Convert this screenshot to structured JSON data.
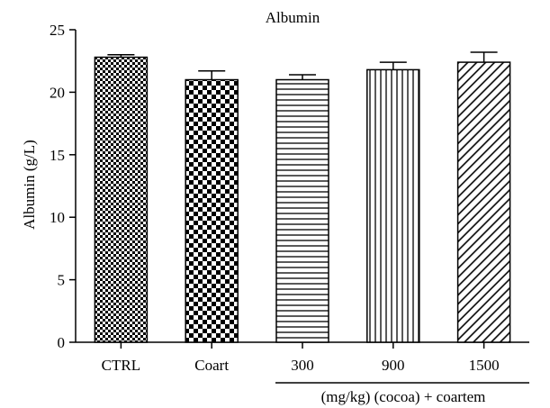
{
  "chart_data": {
    "type": "bar",
    "title": "Albumin",
    "ylabel": "Albumin (g/L)",
    "xlabel": "",
    "ylim": [
      0,
      25
    ],
    "yticks": [
      0,
      5,
      10,
      15,
      20,
      25
    ],
    "categories": [
      "CTRL",
      "Coart",
      "300",
      "900",
      "1500"
    ],
    "values": [
      22.8,
      21.0,
      21.0,
      21.8,
      22.4
    ],
    "errors": [
      0.2,
      0.7,
      0.4,
      0.6,
      0.8
    ],
    "patterns": [
      "fine-check",
      "coarse-check",
      "horizontal-lines",
      "vertical-lines",
      "diagonal-lines"
    ],
    "group_label": "(mg/kg) (cocoa) + coartem",
    "group_categories": [
      "300",
      "900",
      "1500"
    ],
    "grid": false,
    "legend": "none"
  }
}
